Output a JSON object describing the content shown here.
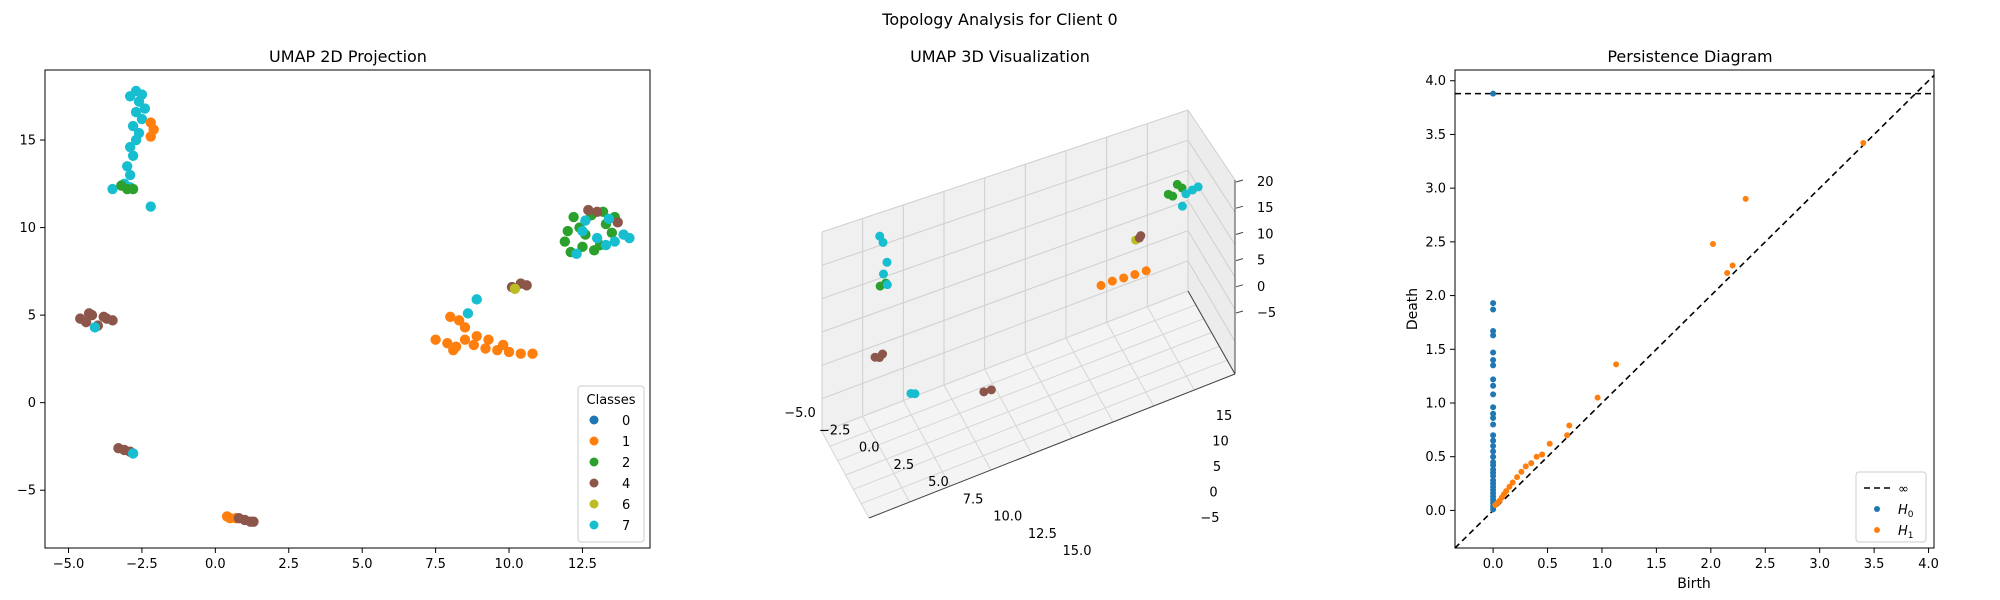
{
  "suptitle": "Topology Analysis for Client 0",
  "colors": {
    "0": "#1f77b4",
    "1": "#ff7f0e",
    "2": "#2ca02c",
    "4": "#8c564b",
    "6": "#bcbd22",
    "7": "#17becf",
    "H0": "#1f77b4",
    "H1": "#ff7f0e"
  },
  "chart_data": [
    {
      "type": "scatter",
      "title": "UMAP 2D Projection",
      "xlabel": "",
      "ylabel": "",
      "xlim": [
        -5.8,
        14.8
      ],
      "ylim": [
        -8.3,
        19.0
      ],
      "xticks": [
        -5.0,
        -2.5,
        0.0,
        2.5,
        5.0,
        7.5,
        10.0,
        12.5
      ],
      "xtick_labels": [
        "−5.0",
        "−2.5",
        "0.0",
        "2.5",
        "5.0",
        "7.5",
        "10.0",
        "12.5"
      ],
      "yticks": [
        -5,
        0,
        5,
        10,
        15
      ],
      "ytick_labels": [
        "−5",
        "0",
        "5",
        "10",
        "15"
      ],
      "legend_title": "Classes",
      "legend_position": "lower-right",
      "legend_entries": [
        "0",
        "1",
        "2",
        "4",
        "6",
        "7"
      ],
      "clusters": [
        {
          "class": "7",
          "points": [
            [
              -2.7,
              17.8
            ],
            [
              -2.5,
              17.6
            ],
            [
              -2.9,
              17.5
            ],
            [
              -2.6,
              17.2
            ],
            [
              -2.4,
              16.8
            ],
            [
              -2.7,
              16.6
            ],
            [
              -2.5,
              16.2
            ],
            [
              -2.8,
              15.8
            ],
            [
              -2.6,
              15.4
            ],
            [
              -2.7,
              15.0
            ],
            [
              -2.9,
              14.6
            ],
            [
              -2.8,
              14.1
            ],
            [
              -3.0,
              13.5
            ],
            [
              -2.9,
              13.0
            ],
            [
              -3.1,
              12.5
            ],
            [
              -3.5,
              12.2
            ],
            [
              -2.2,
              11.2
            ],
            [
              -2.9,
              12.3
            ]
          ]
        },
        {
          "class": "2",
          "points": [
            [
              -3.2,
              12.4
            ],
            [
              -2.8,
              12.2
            ],
            [
              -3.0,
              12.2
            ]
          ]
        },
        {
          "class": "1",
          "points": [
            [
              -2.2,
              16.0
            ],
            [
              -2.1,
              15.6
            ],
            [
              -2.2,
              15.2
            ]
          ]
        },
        {
          "class": "4",
          "points": [
            [
              -4.6,
              4.8
            ],
            [
              -4.2,
              5.0
            ],
            [
              -3.8,
              4.9
            ],
            [
              -3.5,
              4.7
            ],
            [
              -4.4,
              4.6
            ],
            [
              -4.0,
              4.4
            ],
            [
              -3.7,
              4.8
            ],
            [
              -4.3,
              5.1
            ]
          ]
        },
        {
          "class": "7",
          "points": [
            [
              -4.1,
              4.3
            ]
          ]
        },
        {
          "class": "4",
          "points": [
            [
              -3.3,
              -2.6
            ],
            [
              -3.1,
              -2.7
            ],
            [
              -2.9,
              -2.8
            ]
          ]
        },
        {
          "class": "7",
          "points": [
            [
              -2.8,
              -2.9
            ]
          ]
        },
        {
          "class": "1",
          "points": [
            [
              0.4,
              -6.5
            ],
            [
              0.5,
              -6.6
            ],
            [
              0.7,
              -6.6
            ]
          ]
        },
        {
          "class": "4",
          "points": [
            [
              0.8,
              -6.6
            ],
            [
              1.0,
              -6.7
            ],
            [
              1.2,
              -6.8
            ],
            [
              1.3,
              -6.8
            ]
          ]
        },
        {
          "class": "1",
          "points": [
            [
              7.5,
              3.6
            ],
            [
              7.9,
              3.4
            ],
            [
              8.2,
              3.2
            ],
            [
              8.5,
              3.6
            ],
            [
              8.8,
              3.3
            ],
            [
              9.2,
              3.1
            ],
            [
              9.6,
              3.0
            ],
            [
              10.0,
              2.9
            ],
            [
              10.4,
              2.8
            ],
            [
              10.8,
              2.8
            ],
            [
              8.0,
              4.9
            ],
            [
              8.3,
              4.7
            ],
            [
              8.5,
              4.3
            ],
            [
              8.9,
              3.8
            ],
            [
              9.3,
              3.6
            ],
            [
              9.8,
              3.3
            ],
            [
              8.1,
              3.0
            ]
          ]
        },
        {
          "class": "7",
          "points": [
            [
              8.9,
              5.9
            ],
            [
              8.6,
              5.1
            ]
          ]
        },
        {
          "class": "4",
          "points": [
            [
              10.1,
              6.6
            ],
            [
              10.4,
              6.8
            ],
            [
              10.6,
              6.7
            ]
          ]
        },
        {
          "class": "6",
          "points": [
            [
              10.2,
              6.5
            ]
          ]
        },
        {
          "class": "2",
          "points": [
            [
              11.9,
              9.2
            ],
            [
              12.1,
              8.6
            ],
            [
              12.4,
              10.0
            ],
            [
              12.6,
              9.6
            ],
            [
              12.8,
              10.7
            ],
            [
              13.1,
              9.0
            ],
            [
              13.3,
              10.2
            ],
            [
              13.5,
              9.7
            ],
            [
              12.2,
              10.6
            ],
            [
              12.0,
              9.8
            ],
            [
              12.9,
              8.7
            ],
            [
              13.2,
              10.9
            ],
            [
              12.5,
              8.9
            ],
            [
              13.6,
              10.6
            ]
          ]
        },
        {
          "class": "4",
          "points": [
            [
              12.7,
              11.0
            ],
            [
              13.0,
              10.9
            ],
            [
              13.7,
              10.3
            ]
          ]
        },
        {
          "class": "7",
          "points": [
            [
              12.3,
              8.5
            ],
            [
              12.5,
              9.8
            ],
            [
              13.0,
              9.4
            ],
            [
              13.3,
              9.0
            ],
            [
              13.6,
              9.2
            ],
            [
              13.9,
              9.6
            ],
            [
              14.1,
              9.4
            ],
            [
              12.6,
              10.4
            ],
            [
              13.4,
              10.5
            ]
          ]
        }
      ]
    },
    {
      "type": "scatter",
      "title": "UMAP 3D Visualization",
      "xlim": [
        -5.0,
        15.0
      ],
      "ylim": [
        -7.0,
        19.0
      ],
      "zlim": [
        -7.0,
        21.0
      ],
      "xtick_labels": [
        "−5.0",
        "−2.5",
        "0.0",
        "2.5",
        "5.0",
        "7.5",
        "10.0",
        "12.5",
        "15.0"
      ],
      "ytick_labels": [
        "−5",
        "0",
        "5",
        "10",
        "15"
      ],
      "ztick_labels": [
        "−5",
        "0",
        "5",
        "10",
        "15",
        "20"
      ],
      "clusters": [
        {
          "class": "4",
          "points": [
            [
              -4.2,
              5.0,
              5.0
            ],
            [
              -3.8,
              4.9,
              5.1
            ],
            [
              -4.0,
              4.6,
              4.9
            ]
          ]
        },
        {
          "class": "7",
          "points": [
            [
              -2.8,
              -2.9,
              1.0
            ],
            [
              -3.0,
              -2.7,
              1.2
            ]
          ]
        },
        {
          "class": "4",
          "points": [
            [
              0.6,
              -6.6,
              -1.0
            ],
            [
              1.0,
              -6.7,
              -1.1
            ]
          ]
        },
        {
          "class": "2",
          "points": [
            [
              -3.2,
              12.3,
              12.3
            ],
            [
              -2.9,
              12.2,
              12.5
            ]
          ]
        },
        {
          "class": "7",
          "points": [
            [
              -2.8,
              12.4,
              12.0
            ],
            [
              -2.6,
              14.6,
              14.5
            ],
            [
              -2.6,
              16.8,
              16.8
            ],
            [
              -2.7,
              17.6,
              17.6
            ],
            [
              -2.9,
              13.5,
              13.4
            ]
          ]
        },
        {
          "class": "1",
          "points": [
            [
              8.0,
              3.5,
              3.0
            ],
            [
              8.6,
              3.3,
              3.1
            ],
            [
              9.2,
              3.1,
              3.0
            ],
            [
              9.8,
              3.0,
              2.9
            ],
            [
              10.4,
              2.8,
              2.9
            ]
          ]
        },
        {
          "class": "6",
          "points": [
            [
              10.2,
              6.6,
              6.5
            ]
          ]
        },
        {
          "class": "4",
          "points": [
            [
              10.5,
              6.8,
              6.8
            ],
            [
              10.4,
              6.6,
              6.6
            ]
          ]
        },
        {
          "class": "2",
          "points": [
            [
              12.2,
              8.8,
              10.8
            ],
            [
              12.5,
              9.4,
              9.8
            ],
            [
              12.8,
              9.9,
              11.2
            ],
            [
              13.1,
              10.3,
              10.0
            ]
          ]
        },
        {
          "class": "7",
          "points": [
            [
              13.3,
              10.2,
              8.8
            ],
            [
              13.6,
              9.6,
              9.4
            ],
            [
              13.0,
              9.1,
              7.6
            ],
            [
              13.9,
              9.5,
              9.6
            ]
          ]
        }
      ]
    },
    {
      "type": "scatter",
      "title": "Persistence Diagram",
      "xlabel": "Birth",
      "ylabel": "Death",
      "xlim": [
        -0.35,
        4.05
      ],
      "ylim": [
        -0.35,
        4.1
      ],
      "xticks": [
        0.0,
        0.5,
        1.0,
        1.5,
        2.0,
        2.5,
        3.0,
        3.5,
        4.0
      ],
      "yticks": [
        0.0,
        0.5,
        1.0,
        1.5,
        2.0,
        2.5,
        3.0,
        3.5,
        4.0
      ],
      "tick_labels": [
        "0.0",
        "0.5",
        "1.0",
        "1.5",
        "2.0",
        "2.5",
        "3.0",
        "3.5",
        "4.0"
      ],
      "infinity_level": 3.88,
      "legend_position": "lower-right",
      "legend_entries": {
        "inf": "∞",
        "H0": "H",
        "H0_sub": "0",
        "H1": "H",
        "H1_sub": "1"
      },
      "H0": [
        [
          0,
          1.93
        ],
        [
          0,
          1.87
        ],
        [
          0,
          1.67
        ],
        [
          0,
          1.63
        ],
        [
          0,
          1.47
        ],
        [
          0,
          1.4
        ],
        [
          0,
          1.35
        ],
        [
          0,
          1.22
        ],
        [
          0,
          1.16
        ],
        [
          0,
          1.08
        ],
        [
          0,
          0.96
        ],
        [
          0,
          0.9
        ],
        [
          0,
          0.86
        ],
        [
          0,
          0.8
        ],
        [
          0,
          0.7
        ],
        [
          0,
          0.65
        ],
        [
          0,
          0.6
        ],
        [
          0,
          0.55
        ],
        [
          0,
          0.5
        ],
        [
          0,
          0.45
        ],
        [
          0,
          0.42
        ],
        [
          0,
          0.38
        ],
        [
          0,
          0.35
        ],
        [
          0,
          0.32
        ],
        [
          0,
          0.28
        ],
        [
          0,
          0.25
        ],
        [
          0,
          0.22
        ],
        [
          0,
          0.19
        ],
        [
          0,
          0.16
        ],
        [
          0,
          0.13
        ],
        [
          0,
          0.1
        ],
        [
          0,
          0.07
        ],
        [
          0,
          0.04
        ],
        [
          0,
          0.01
        ],
        [
          0,
          3.88
        ]
      ],
      "H1": [
        [
          3.4,
          3.42
        ],
        [
          2.32,
          2.9
        ],
        [
          2.02,
          2.48
        ],
        [
          2.2,
          2.28
        ],
        [
          2.15,
          2.21
        ],
        [
          1.13,
          1.36
        ],
        [
          0.96,
          1.05
        ],
        [
          0.7,
          0.79
        ],
        [
          0.68,
          0.7
        ],
        [
          0.52,
          0.62
        ],
        [
          0.45,
          0.52
        ],
        [
          0.4,
          0.5
        ],
        [
          0.35,
          0.44
        ],
        [
          0.3,
          0.41
        ],
        [
          0.26,
          0.36
        ],
        [
          0.22,
          0.31
        ],
        [
          0.18,
          0.26
        ],
        [
          0.15,
          0.22
        ],
        [
          0.12,
          0.18
        ],
        [
          0.1,
          0.15
        ],
        [
          0.08,
          0.12
        ],
        [
          0.06,
          0.09
        ],
        [
          0.04,
          0.07
        ],
        [
          0.02,
          0.05
        ]
      ]
    }
  ]
}
